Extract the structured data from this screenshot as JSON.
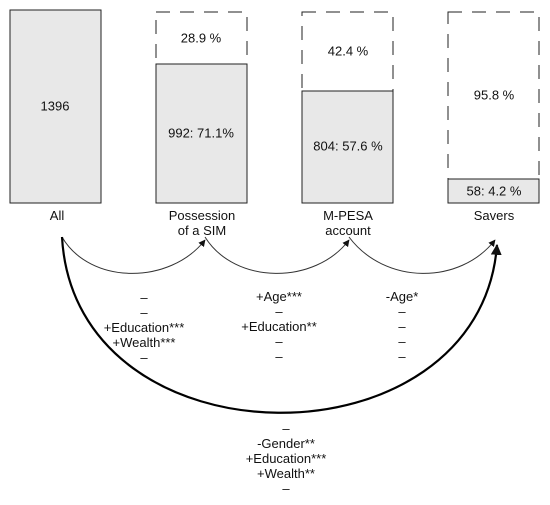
{
  "stages": [
    {
      "id": "all",
      "label": "All",
      "count_label": "1396"
    },
    {
      "id": "sim",
      "label": "Possession\nof a SIM",
      "filled_label": "992: 71.1%",
      "missing_label": "28.9 %"
    },
    {
      "id": "mpesa",
      "label": "M-PESA\naccount",
      "filled_label": "804: 57.6 %",
      "missing_label": "42.4 %"
    },
    {
      "id": "savers",
      "label": "Savers",
      "filled_label": "58: 4.2 %",
      "missing_label": "95.8 %"
    }
  ],
  "transitions": {
    "all_to_sim": [
      "–",
      "–",
      "+Education***",
      "+Wealth***",
      "–"
    ],
    "sim_to_mpesa": [
      "+Age***",
      "–",
      "+Education**",
      "–",
      "–"
    ],
    "mpesa_to_savers": [
      "-Age*",
      "–",
      "–",
      "–",
      "–"
    ],
    "all_to_savers": [
      "–",
      "-Gender**",
      "+Education***",
      "+Wealth**",
      "–"
    ]
  },
  "colors": {
    "box_fill": "#e8e8e8",
    "stroke": "#222222"
  }
}
